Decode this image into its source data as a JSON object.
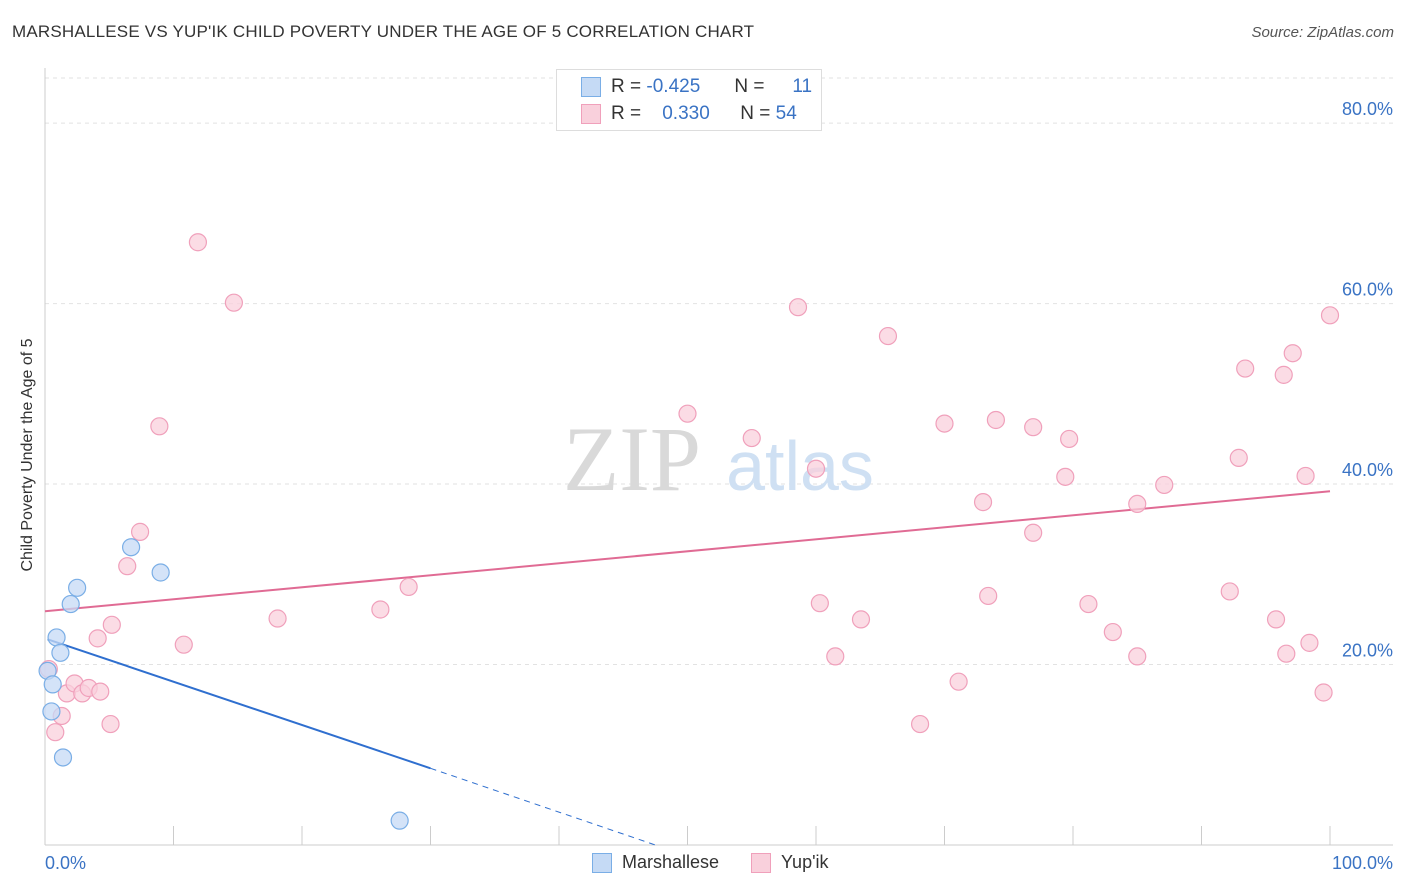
{
  "title": "MARSHALLESE VS YUP'IK CHILD POVERTY UNDER THE AGE OF 5 CORRELATION CHART",
  "source": "Source: ZipAtlas.com",
  "legend_stats": [
    {
      "r_label": "R =",
      "r": "-0.425",
      "n_label": "N =",
      "n": "11"
    },
    {
      "r_label": "R =",
      "r": "0.330",
      "n_label": "N =",
      "n": "54"
    }
  ],
  "watermark": {
    "zip": "ZIP",
    "atlas": "atlas"
  },
  "chart_data": {
    "type": "scatter",
    "title": "MARSHALLESE VS YUP'IK CHILD POVERTY UNDER THE AGE OF 5 CORRELATION CHART",
    "xlabel": "",
    "ylabel": "Child Poverty Under the Age of 5",
    "xlim": [
      0,
      100
    ],
    "ylim": [
      0,
      85
    ],
    "x_tick_labels": [
      "0.0%",
      "100.0%"
    ],
    "y_ticks": [
      20,
      40,
      60,
      80
    ],
    "y_tick_labels": [
      "20.0%",
      "40.0%",
      "60.0%",
      "80.0%"
    ],
    "grid": true,
    "legend_position": "top-center",
    "series": [
      {
        "name": "Marshallese",
        "color": "#7aaee6",
        "fill": "#c5daf5",
        "points": [
          [
            0.2,
            19.3
          ],
          [
            0.6,
            17.8
          ],
          [
            0.5,
            14.8
          ],
          [
            0.9,
            23.0
          ],
          [
            1.2,
            21.3
          ],
          [
            1.4,
            9.7
          ],
          [
            2.0,
            26.7
          ],
          [
            2.5,
            28.5
          ],
          [
            6.7,
            33.0
          ],
          [
            9.0,
            30.2
          ],
          [
            27.6,
            2.7
          ]
        ],
        "trend": {
          "x0": 0.2,
          "y0": 22.8,
          "x1": 30.0,
          "y1": 8.5,
          "dash_x1": 47.5,
          "dash_y1": 0
        }
      },
      {
        "name": "Yup'ik",
        "color": "#f0a0bb",
        "fill": "#f9d0dc",
        "points": [
          [
            0.3,
            19.5
          ],
          [
            0.8,
            12.5
          ],
          [
            1.3,
            14.3
          ],
          [
            1.7,
            16.8
          ],
          [
            2.3,
            17.9
          ],
          [
            2.9,
            16.8
          ],
          [
            3.4,
            17.4
          ],
          [
            4.1,
            22.9
          ],
          [
            4.3,
            17.0
          ],
          [
            5.2,
            24.4
          ],
          [
            5.1,
            13.4
          ],
          [
            6.4,
            30.9
          ],
          [
            7.4,
            34.7
          ],
          [
            8.9,
            46.4
          ],
          [
            10.8,
            22.2
          ],
          [
            11.9,
            66.8
          ],
          [
            14.7,
            60.1
          ],
          [
            18.1,
            25.1
          ],
          [
            26.1,
            26.1
          ],
          [
            28.3,
            28.6
          ],
          [
            50.0,
            47.8
          ],
          [
            55.0,
            45.1
          ],
          [
            58.6,
            59.6
          ],
          [
            60.0,
            41.7
          ],
          [
            60.3,
            26.8
          ],
          [
            61.5,
            20.9
          ],
          [
            63.5,
            25.0
          ],
          [
            65.6,
            56.4
          ],
          [
            68.1,
            13.4
          ],
          [
            70.0,
            46.7
          ],
          [
            71.1,
            18.1
          ],
          [
            73.0,
            38.0
          ],
          [
            73.4,
            27.6
          ],
          [
            74.0,
            47.1
          ],
          [
            76.9,
            34.6
          ],
          [
            76.9,
            46.3
          ],
          [
            79.4,
            40.8
          ],
          [
            79.7,
            45.0
          ],
          [
            81.2,
            26.7
          ],
          [
            83.1,
            23.6
          ],
          [
            85.0,
            37.8
          ],
          [
            85.0,
            20.9
          ],
          [
            87.1,
            39.9
          ],
          [
            92.2,
            28.1
          ],
          [
            92.9,
            42.9
          ],
          [
            93.4,
            52.8
          ],
          [
            95.8,
            25.0
          ],
          [
            96.4,
            52.1
          ],
          [
            96.6,
            21.2
          ],
          [
            97.1,
            54.5
          ],
          [
            98.1,
            40.9
          ],
          [
            98.4,
            22.4
          ],
          [
            99.5,
            16.9
          ],
          [
            100.0,
            58.7
          ]
        ],
        "trend": {
          "x0": 0,
          "y0": 25.9,
          "x1": 100,
          "y1": 39.2
        }
      }
    ]
  }
}
